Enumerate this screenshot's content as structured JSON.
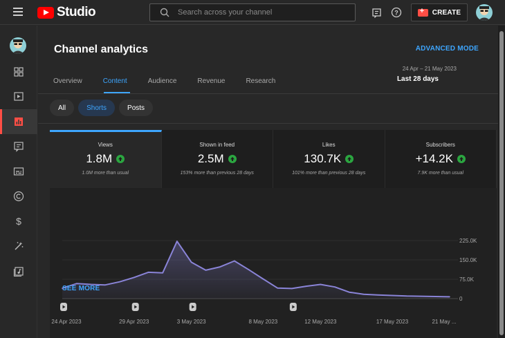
{
  "app": {
    "logo_text": "Studio"
  },
  "search": {
    "placeholder": "Search across your channel"
  },
  "toolbar": {
    "create_label": "CREATE"
  },
  "page": {
    "title": "Channel analytics",
    "advanced_mode": "ADVANCED MODE",
    "date_range": "24 Apr – 21 May 2023",
    "date_label": "Last 28 days"
  },
  "tabs": [
    {
      "label": "Overview",
      "active": false
    },
    {
      "label": "Content",
      "active": true
    },
    {
      "label": "Audience",
      "active": false
    },
    {
      "label": "Revenue",
      "active": false
    },
    {
      "label": "Research",
      "active": false
    }
  ],
  "chips": [
    {
      "label": "All",
      "active": false
    },
    {
      "label": "Shorts",
      "active": true
    },
    {
      "label": "Posts",
      "active": false
    }
  ],
  "metrics": [
    {
      "label": "Views",
      "value": "1.8M",
      "note": "1.0M more than usual"
    },
    {
      "label": "Shown in feed",
      "value": "2.5M",
      "note": "153% more than previous 28 days"
    },
    {
      "label": "Likes",
      "value": "130.7K",
      "note": "101% more than previous 28 days"
    },
    {
      "label": "Subscribers",
      "value": "+14.2K",
      "note": "7.9K more than usual"
    }
  ],
  "see_more": "SEE MORE",
  "icons": {
    "sidebar": [
      "dashboard-icon",
      "content-icon",
      "analytics-icon",
      "comments-icon",
      "subtitles-icon",
      "copyright-icon",
      "earn-icon",
      "customization-icon",
      "audio-library-icon"
    ],
    "top": [
      "menu-icon",
      "search-icon",
      "feedback-icon",
      "help-icon",
      "create-video-icon"
    ]
  },
  "colors": {
    "accent": "#3ea6ff",
    "brand": "#ff0000",
    "line": "#8a84d8",
    "up": "#2ba640"
  },
  "chart_data": {
    "type": "area",
    "title": "",
    "xlabel": "",
    "ylabel": "",
    "x_tick_labels": [
      "24 Apr 2023",
      "29 Apr 2023",
      "3 May 2023",
      "8 May 2023",
      "12 May 2023",
      "17 May 2023",
      "21 May ..."
    ],
    "x": [
      "2023-04-24",
      "2023-04-25",
      "2023-04-26",
      "2023-04-27",
      "2023-04-28",
      "2023-04-29",
      "2023-04-30",
      "2023-05-01",
      "2023-05-02",
      "2023-05-03",
      "2023-05-04",
      "2023-05-05",
      "2023-05-06",
      "2023-05-07",
      "2023-05-08",
      "2023-05-09",
      "2023-05-10",
      "2023-05-11",
      "2023-05-12",
      "2023-05-13",
      "2023-05-14",
      "2023-05-15",
      "2023-05-16",
      "2023-05-17",
      "2023-05-18",
      "2023-05-19",
      "2023-05-20",
      "2023-05-21"
    ],
    "series": [
      {
        "values": [
          40000,
          58000,
          55000,
          53000,
          65000,
          82000,
          102000,
          100000,
          222000,
          141000,
          110000,
          123000,
          146000,
          112000,
          76000,
          41000,
          39000,
          48000,
          55000,
          45000,
          25000,
          17000,
          14000,
          12000,
          10000,
          9000,
          8000,
          7000
        ]
      }
    ],
    "y_tick_labels": [
      "225.0K",
      "150.0K",
      "75.0K",
      "0"
    ],
    "ylim": [
      0,
      225000
    ],
    "grid": true,
    "upload_marker_dates": [
      "2023-04-24",
      "2023-04-29",
      "2023-05-03",
      "2023-05-10"
    ]
  }
}
